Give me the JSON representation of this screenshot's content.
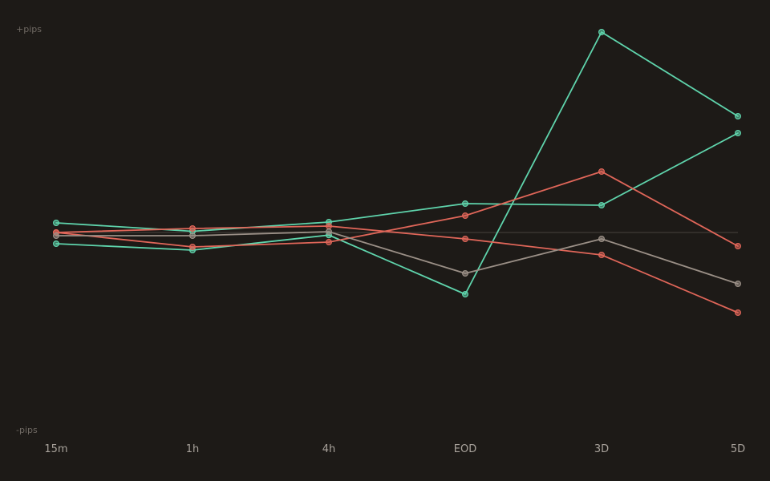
{
  "chart_data": {
    "type": "line",
    "title": "",
    "xlabel": "",
    "ylabel": "",
    "categories": [
      "15m",
      "1h",
      "4h",
      "EOD",
      "3D",
      "5D"
    ],
    "y_top_label": "+pips",
    "y_bottom_label": "-pips",
    "ylim": [
      -100,
      100
    ],
    "zero_line": true,
    "grid": false,
    "legend": "none",
    "series": [
      {
        "color": "#5fd4ac",
        "values": [
          -5.6,
          -8.8,
          -1.3,
          -30.8,
          100.0,
          58.0
        ]
      },
      {
        "color": "#5fd4ac",
        "values": [
          4.8,
          0.6,
          5.2,
          14.4,
          13.6,
          49.6
        ]
      },
      {
        "color": "#e06659",
        "values": [
          0.0,
          -7.2,
          -4.8,
          8.4,
          30.4,
          -6.8
        ]
      },
      {
        "color": "#e06659",
        "values": [
          0.0,
          2.0,
          3.2,
          -3.2,
          -11.2,
          -40.0
        ]
      },
      {
        "color": "#9a8f86",
        "values": [
          -1.6,
          -1.6,
          0.4,
          -20.4,
          -3.2,
          -25.6
        ]
      }
    ]
  },
  "colors": {
    "background": "#1d1a17",
    "zero_line": "#3a3531",
    "axis_label": "#6f6963",
    "tick_label": "#a9a39c"
  }
}
